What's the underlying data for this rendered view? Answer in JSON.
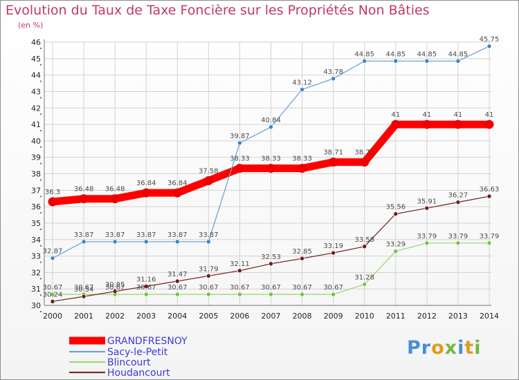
{
  "title": "Evolution du Taux de Taxe Foncière sur les Propriétés Non Bâties",
  "unit": "(en %)",
  "logo": "Proxiti",
  "chart_data": {
    "type": "line",
    "x": [
      "2000",
      "2001",
      "2002",
      "2003",
      "2004",
      "2005",
      "2006",
      "2007",
      "2008",
      "2009",
      "2010",
      "2011",
      "2012",
      "2013",
      "2014"
    ],
    "ylim": [
      30,
      46
    ],
    "yticks": [
      "30",
      "31",
      "32",
      "33",
      "34",
      "35",
      "36",
      "37",
      "38",
      "39",
      "40",
      "41",
      "42",
      "43",
      "44",
      "45",
      "46"
    ],
    "grid": true,
    "legend_position": "bottom-left",
    "series": [
      {
        "name": "GRANDFRESNOY",
        "color": "#ff0000",
        "marker": "#ee0000",
        "width": 11,
        "values": [
          36.3,
          36.48,
          36.48,
          36.84,
          36.84,
          37.58,
          38.33,
          38.33,
          38.33,
          38.71,
          38.71,
          41,
          41,
          41,
          41
        ],
        "labels": [
          "36.3",
          "36.48",
          "36.48",
          "36.84",
          "36.84",
          "37.58",
          "38.33",
          "38.33",
          "38.33",
          "38.71",
          "38.71",
          "41",
          "41",
          "41",
          "41"
        ]
      },
      {
        "name": "Sacy-le-Petit",
        "color": "#6fa3d8",
        "marker": "#3b85c6",
        "width": 1.3,
        "values": [
          32.87,
          33.87,
          33.87,
          33.87,
          33.87,
          33.87,
          39.87,
          40.84,
          43.12,
          43.78,
          44.85,
          44.85,
          44.85,
          44.85,
          45.75
        ],
        "labels": [
          "32.87",
          "33.87",
          "33.87",
          "33.87",
          "33.87",
          "33.87",
          "39.87",
          "40.84",
          "43.12",
          "43.78",
          "44.85",
          "44.85",
          "44.85",
          "44.85",
          "45.75"
        ]
      },
      {
        "name": "Blincourt",
        "color": "#9bd97a",
        "marker": "#6cc840",
        "width": 1.3,
        "values": [
          30.67,
          30.67,
          30.67,
          30.67,
          30.67,
          30.67,
          30.67,
          30.67,
          30.67,
          30.67,
          31.28,
          33.29,
          33.79,
          33.79,
          33.79
        ],
        "labels": [
          "30.67",
          "30.67",
          "30.67",
          "30.67",
          "30.67",
          "30.67",
          "30.67",
          "30.67",
          "30.67",
          "30.67",
          "31.28",
          "33.29",
          "33.79",
          "33.79",
          "33.79"
        ]
      },
      {
        "name": "Houdancourt",
        "color": "#7a2b2b",
        "marker": "#6b1c1c",
        "width": 1.3,
        "values": [
          30.24,
          30.54,
          30.85,
          31.16,
          31.47,
          31.79,
          32.11,
          32.53,
          32.85,
          33.19,
          33.58,
          35.56,
          35.91,
          36.27,
          36.63
        ],
        "labels": [
          "30.24",
          "30.54",
          "30.85",
          "31.16",
          "31.47",
          "31.79",
          "32.11",
          "32.53",
          "32.85",
          "33.19",
          "33.58",
          "35.56",
          "35.91",
          "36.27",
          "36.63"
        ]
      }
    ]
  }
}
